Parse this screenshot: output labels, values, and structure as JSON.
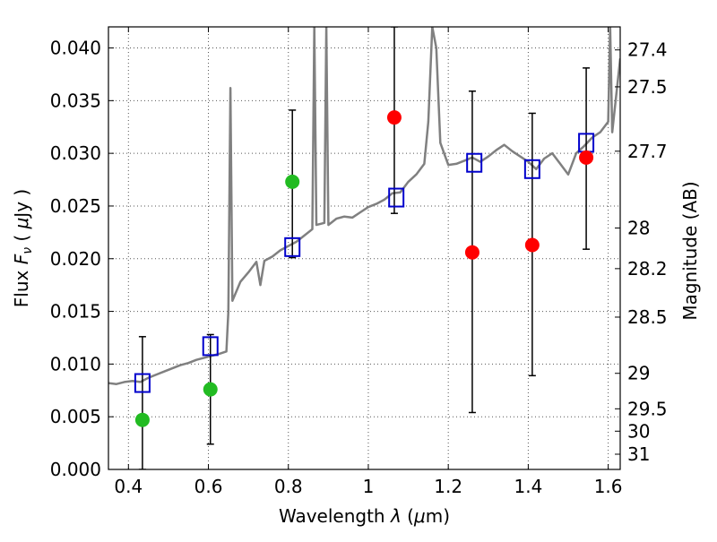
{
  "chart_data": {
    "type": "scatter",
    "title": "",
    "xlabel_prefix": "Wavelength  ",
    "xlabel_symbol": "λ",
    "xlabel_unit_open": " (",
    "xlabel_unit_mu": "μ",
    "xlabel_unit_rest": "m)",
    "ylabel_prefix": "Flux  ",
    "ylabel_symbol": "F",
    "ylabel_sub": "ν",
    "ylabel_unit_open": "  ( ",
    "ylabel_unit_mu": "μ",
    "ylabel_unit_rest": "Jy )",
    "y2label": "Magnitude (AB)",
    "xlim": [
      0.35,
      1.63
    ],
    "ylim": [
      0.0,
      0.042
    ],
    "grid": true,
    "x_ticks": [
      0.4,
      0.6,
      0.8,
      1.0,
      1.2,
      1.4,
      1.6
    ],
    "x_tick_labels": [
      "0.4",
      "0.6",
      "0.8",
      "1",
      "1.2",
      "1.4",
      "1.6"
    ],
    "y_ticks": [
      0.0,
      0.005,
      0.01,
      0.015,
      0.02,
      0.025,
      0.03,
      0.035,
      0.04
    ],
    "y_tick_labels": [
      "0.000",
      "0.005",
      "0.010",
      "0.015",
      "0.020",
      "0.025",
      "0.030",
      "0.035",
      "0.040"
    ],
    "y2_tick_labels": [
      "27.4",
      "27.5",
      "27.7",
      "28",
      "28.2",
      "28.5",
      "29",
      "29.5",
      "30",
      "31"
    ],
    "y2_tick_mag": [
      27.4,
      27.5,
      27.7,
      28.0,
      28.2,
      28.5,
      29.0,
      29.5,
      30.0,
      31.0
    ],
    "colors": {
      "spectrum": "#808080",
      "model": "#0000cc",
      "detected": "#22bb22",
      "red": "#ff0000",
      "errorbar": "#000000"
    },
    "series": [
      {
        "values": [
          [
            0.35,
            0.0082
          ],
          [
            0.37,
            0.0081
          ],
          [
            0.39,
            0.0083
          ],
          [
            0.41,
            0.0084
          ],
          [
            0.43,
            0.0083
          ],
          [
            0.45,
            0.0087
          ],
          [
            0.47,
            0.009
          ],
          [
            0.49,
            0.0093
          ],
          [
            0.51,
            0.0096
          ],
          [
            0.53,
            0.0099
          ],
          [
            0.55,
            0.0101
          ],
          [
            0.57,
            0.0104
          ],
          [
            0.59,
            0.0106
          ],
          [
            0.61,
            0.0108
          ],
          [
            0.63,
            0.011
          ],
          [
            0.645,
            0.0112
          ],
          [
            0.65,
            0.015
          ],
          [
            0.655,
            0.0362
          ],
          [
            0.66,
            0.016
          ],
          [
            0.68,
            0.0178
          ],
          [
            0.7,
            0.0187
          ],
          [
            0.72,
            0.0197
          ],
          [
            0.73,
            0.0175
          ],
          [
            0.74,
            0.0198
          ],
          [
            0.76,
            0.0202
          ],
          [
            0.78,
            0.0208
          ],
          [
            0.8,
            0.0212
          ],
          [
            0.82,
            0.0216
          ],
          [
            0.84,
            0.0222
          ],
          [
            0.86,
            0.0228
          ],
          [
            0.865,
            0.042
          ],
          [
            0.87,
            0.0232
          ],
          [
            0.89,
            0.0234
          ],
          [
            0.895,
            0.042
          ],
          [
            0.9,
            0.0232
          ],
          [
            0.92,
            0.0238
          ],
          [
            0.94,
            0.024
          ],
          [
            0.96,
            0.0239
          ],
          [
            0.98,
            0.0244
          ],
          [
            1.0,
            0.0249
          ],
          [
            1.02,
            0.0252
          ],
          [
            1.04,
            0.0256
          ],
          [
            1.06,
            0.0262
          ],
          [
            1.08,
            0.0263
          ],
          [
            1.1,
            0.0273
          ],
          [
            1.12,
            0.028
          ],
          [
            1.14,
            0.029
          ],
          [
            1.15,
            0.033
          ],
          [
            1.16,
            0.042
          ],
          [
            1.17,
            0.04
          ],
          [
            1.18,
            0.031
          ],
          [
            1.2,
            0.0289
          ],
          [
            1.22,
            0.029
          ],
          [
            1.24,
            0.0293
          ],
          [
            1.26,
            0.0296
          ],
          [
            1.28,
            0.0292
          ],
          [
            1.3,
            0.0297
          ],
          [
            1.32,
            0.0303
          ],
          [
            1.34,
            0.0308
          ],
          [
            1.36,
            0.0302
          ],
          [
            1.38,
            0.0297
          ],
          [
            1.4,
            0.0292
          ],
          [
            1.42,
            0.0285
          ],
          [
            1.44,
            0.0295
          ],
          [
            1.46,
            0.03
          ],
          [
            1.48,
            0.029
          ],
          [
            1.5,
            0.028
          ],
          [
            1.52,
            0.03
          ],
          [
            1.54,
            0.0307
          ],
          [
            1.56,
            0.0315
          ],
          [
            1.58,
            0.032
          ],
          [
            1.6,
            0.033
          ],
          [
            1.605,
            0.042
          ],
          [
            1.61,
            0.032
          ],
          [
            1.63,
            0.039
          ]
        ]
      },
      {
        "values": [
          [
            0.435,
            0.0082
          ],
          [
            0.605,
            0.0117
          ],
          [
            0.81,
            0.0211
          ],
          [
            1.07,
            0.0258
          ],
          [
            1.265,
            0.0291
          ],
          [
            1.41,
            0.0285
          ],
          [
            1.545,
            0.031
          ]
        ]
      },
      {
        "values": [
          [
            0.435,
            0.0047
          ],
          [
            0.605,
            0.0076
          ],
          [
            0.81,
            0.0273
          ]
        ]
      },
      {
        "values": [
          [
            1.065,
            0.0334
          ],
          [
            1.26,
            0.0206
          ],
          [
            1.41,
            0.0213
          ],
          [
            1.545,
            0.0296
          ]
        ]
      }
    ],
    "error_bars": [
      {
        "x": 0.435,
        "low": 0.0,
        "high": 0.0126
      },
      {
        "x": 0.605,
        "low": 0.0024,
        "high": 0.0128
      },
      {
        "x": 0.81,
        "low": 0.0201,
        "high": 0.0341
      },
      {
        "x": 1.065,
        "low": 0.0243,
        "high": 0.042
      },
      {
        "x": 1.26,
        "low": 0.0054,
        "high": 0.0359
      },
      {
        "x": 1.41,
        "low": 0.0089,
        "high": 0.0338
      },
      {
        "x": 1.545,
        "low": 0.0209,
        "high": 0.0381
      }
    ]
  }
}
